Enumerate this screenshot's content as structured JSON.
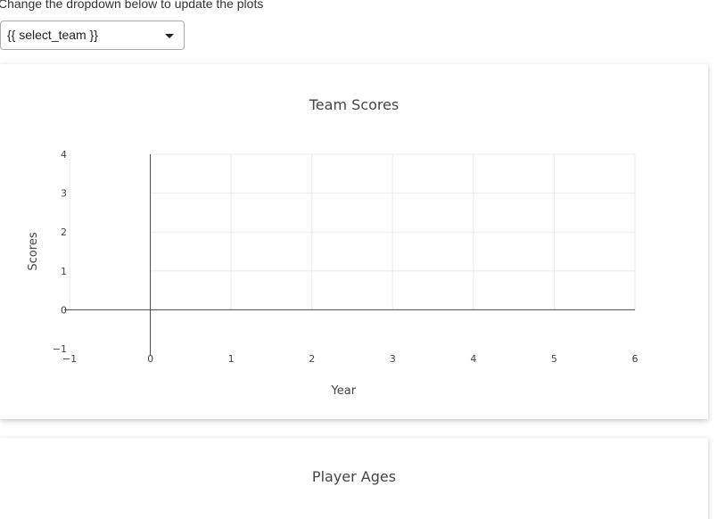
{
  "instruction": "Change the dropdown below to update the plots",
  "dropdown": {
    "selected": "{{ select_team }}",
    "caret_icon": "caret-down-icon"
  },
  "charts": {
    "scores": {
      "title": "Team Scores"
    },
    "ages": {
      "title": "Player Ages"
    }
  },
  "chart_data": [
    {
      "type": "line",
      "title": "Team Scores",
      "xlabel": "Year",
      "ylabel": "Scores",
      "x_ticks": [
        -1,
        0,
        1,
        2,
        3,
        4,
        5,
        6
      ],
      "y_ticks": [
        -1,
        0,
        1,
        2,
        3,
        4
      ],
      "xlim": [
        -1,
        6
      ],
      "ylim": [
        -1,
        4
      ],
      "series": [],
      "grid": true
    },
    {
      "type": "line",
      "title": "Player Ages",
      "series": []
    }
  ]
}
